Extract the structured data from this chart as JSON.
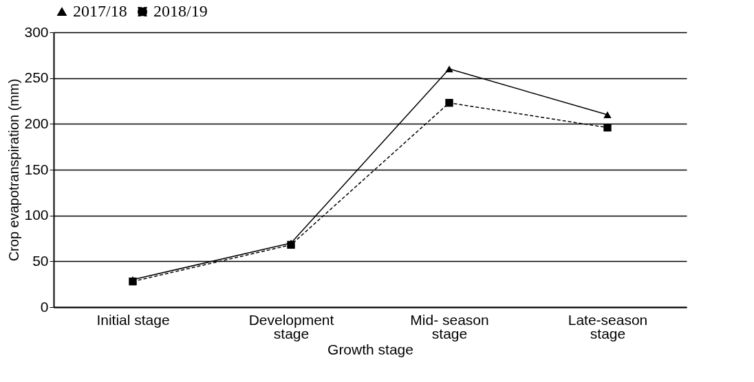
{
  "chart_data": {
    "type": "line",
    "xlabel": "Growth stage",
    "ylabel": "Crop evapotranspiration (mm)",
    "categories": [
      "Initial stage",
      "Development stage",
      "Mid- season stage",
      "Late-season stage"
    ],
    "series": [
      {
        "name": "2017/18",
        "color": "#000000",
        "marker": "triangle",
        "line_style": "solid",
        "values": [
          30,
          70,
          260,
          210
        ]
      },
      {
        "name": "2018/19",
        "color": "#000000",
        "marker": "square",
        "line_style": "dashed",
        "values": [
          28,
          68,
          223,
          196
        ]
      }
    ],
    "ylim": [
      0,
      300
    ],
    "yticks": [
      0,
      50,
      100,
      150,
      200,
      250,
      300
    ],
    "grid": "y",
    "legend": "top"
  }
}
